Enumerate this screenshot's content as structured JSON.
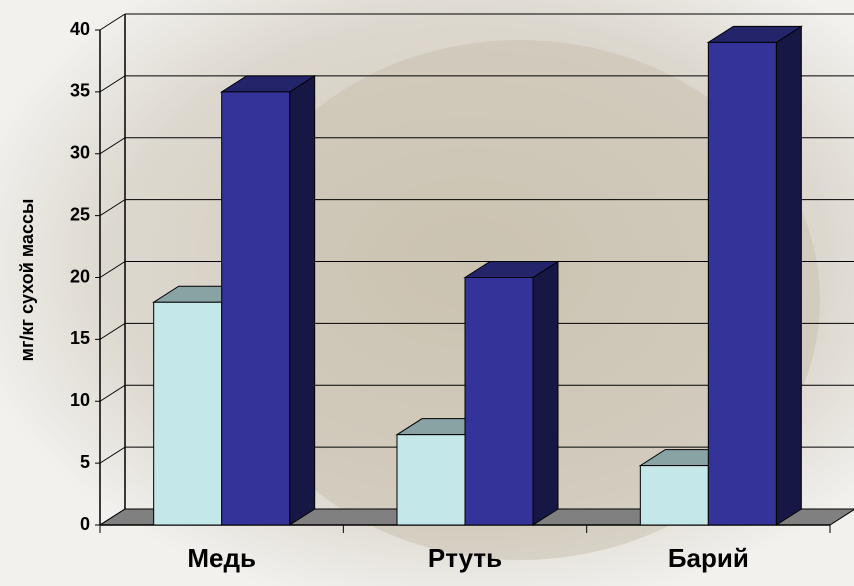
{
  "chart_data": {
    "type": "bar3d",
    "y_label": "мг/кг сухой массы",
    "categories": [
      "Медь",
      "Ртуть",
      "Барий"
    ],
    "series": [
      {
        "color": "#c4e8ea",
        "values": [
          18,
          7.3,
          4.8
        ]
      },
      {
        "color": "#333399",
        "values": [
          35,
          20,
          39
        ]
      }
    ],
    "ylim": [
      0,
      40
    ],
    "yticks": [
      0,
      5,
      10,
      15,
      20,
      25,
      30,
      35,
      40
    ],
    "grid": true
  }
}
